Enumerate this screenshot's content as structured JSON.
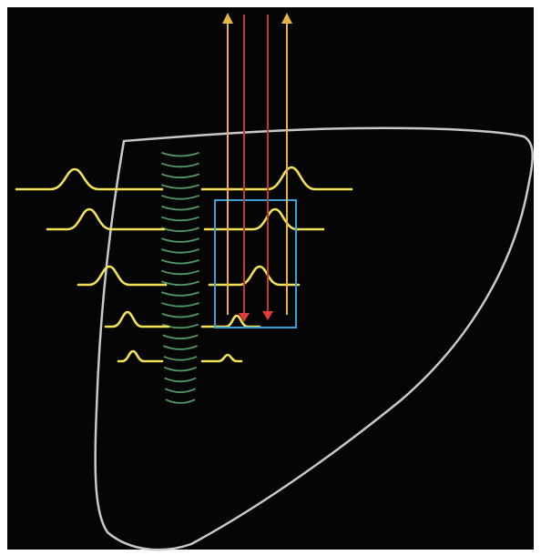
{
  "diagram": {
    "colors": {
      "background": "#050505",
      "frame": "#ffffff",
      "outline": "#c9c9c9",
      "pulse": "#f2e25a",
      "wavefront": "#4f9a64",
      "box": "#3aa0d8",
      "arrow_up": "#e8b24a",
      "arrow_down": "#c0392b",
      "arrow_head_down": "#e23b3b"
    },
    "elements": [
      {
        "kind": "background-panel",
        "name": "diagram-background"
      },
      {
        "kind": "organ-outline",
        "name": "organ-outline"
      },
      {
        "kind": "wavefront-arcs",
        "name": "shear-wave-front",
        "count": 24
      },
      {
        "kind": "pulse-row",
        "name": "pulse-row-1"
      },
      {
        "kind": "pulse-row",
        "name": "pulse-row-2"
      },
      {
        "kind": "pulse-row",
        "name": "pulse-row-3"
      },
      {
        "kind": "pulse-row",
        "name": "pulse-row-4"
      },
      {
        "kind": "pulse-row",
        "name": "pulse-row-5"
      },
      {
        "kind": "region-of-interest",
        "name": "roi-box"
      },
      {
        "kind": "upward-arrow",
        "name": "outgoing-beam-arrow-left"
      },
      {
        "kind": "upward-arrow",
        "name": "outgoing-beam-arrow-right"
      },
      {
        "kind": "downward-arrow",
        "name": "incoming-beam-arrow-left"
      },
      {
        "kind": "downward-arrow",
        "name": "incoming-beam-arrow-right"
      }
    ]
  }
}
